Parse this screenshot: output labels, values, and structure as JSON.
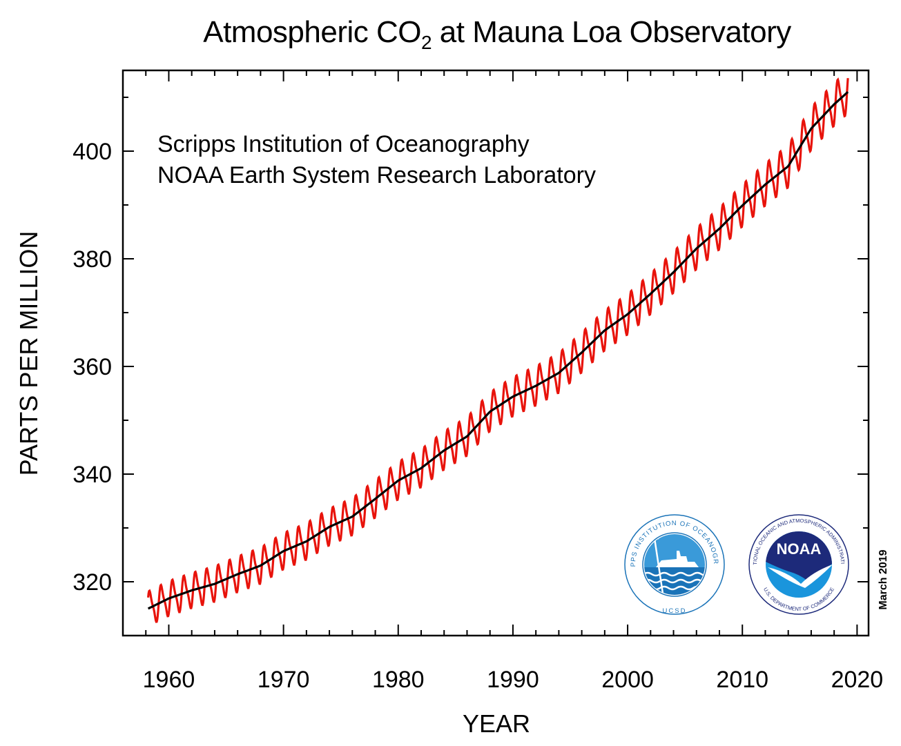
{
  "chart_data": {
    "type": "line",
    "title": "Atmospheric CO",
    "title_subscript": "2",
    "title_suffix": " at Mauna Loa Observatory",
    "xlabel": "YEAR",
    "ylabel": "PARTS PER MILLION",
    "xlim": [
      1956,
      2021
    ],
    "ylim": [
      310,
      415
    ],
    "x_ticks": [
      1960,
      1970,
      1980,
      1990,
      2000,
      2010,
      2020
    ],
    "y_ticks": [
      320,
      340,
      360,
      380,
      400
    ],
    "sources": [
      "Scripps Institution of Oceanography",
      "NOAA Earth System Research Laboratory"
    ],
    "credit": "March 2019",
    "grid": false,
    "seasonal_amplitude_ppm": 3.2,
    "series": [
      {
        "color": "#e8130b",
        "style": "monthly mean with seasonal cycle"
      },
      {
        "color": "#000000",
        "style": "seasonally corrected trend",
        "x": [
          1958.2,
          1960,
          1962,
          1964,
          1966,
          1968,
          1970,
          1972,
          1974,
          1976,
          1978,
          1980,
          1982,
          1984,
          1986,
          1988,
          1990,
          1992,
          1994,
          1996,
          1998,
          2000,
          2002,
          2004,
          2006,
          2008,
          2010,
          2012,
          2014,
          2016,
          2018,
          2019.2
        ],
        "y": [
          315.0,
          316.9,
          318.4,
          319.6,
          321.4,
          323.0,
          325.7,
          327.5,
          330.2,
          332.1,
          335.4,
          338.8,
          341.1,
          344.4,
          347.0,
          351.6,
          354.4,
          356.4,
          358.8,
          362.6,
          366.7,
          369.7,
          373.5,
          377.5,
          381.9,
          385.6,
          389.9,
          393.8,
          397.2,
          404.2,
          408.7,
          411.0
        ]
      }
    ]
  },
  "logos": [
    {
      "name": "Scripps Institution of Oceanography",
      "ring_text": "SCRIPPS INSTITUTION OF OCEANOGRAPHY",
      "bottom_text": "UCSD",
      "color": "#1a73b8"
    },
    {
      "name": "NOAA",
      "ring_text": "NATIONAL OCEANIC AND ATMOSPHERIC ADMINISTRATION",
      "bottom_text": "U.S. DEPARTMENT OF COMMERCE",
      "center_text": "NOAA",
      "color": "#1d2a7a"
    }
  ]
}
